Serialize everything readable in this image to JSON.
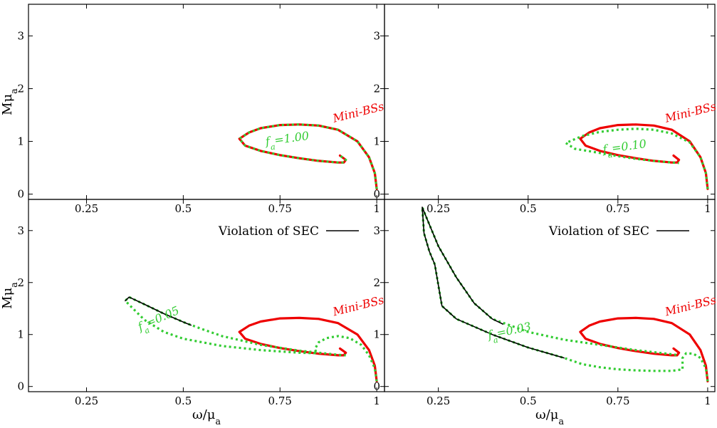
{
  "colors": {
    "mini": "#ee0000",
    "axion": "#33cc33",
    "sec": "#000000"
  },
  "chart_data": [
    {
      "type": "line",
      "xlim": [
        0.1,
        1.02
      ],
      "ylim": [
        -0.1,
        3.6
      ],
      "xticks": [
        "0.25",
        "0.5",
        "0.75",
        "1"
      ],
      "yticks": [
        "0",
        "1",
        "2",
        "3"
      ],
      "xlabel": "",
      "ylabel": "Mμa",
      "mini_label": "Mini-BSs",
      "curve_label": "fa=1.00",
      "legend": "",
      "series": [
        {
          "name": "Mini-BSs",
          "style": "solid-red",
          "x": [
            1.0,
            0.995,
            0.98,
            0.95,
            0.9,
            0.85,
            0.8,
            0.75,
            0.7,
            0.67,
            0.645,
            0.66,
            0.7,
            0.75,
            0.8,
            0.85,
            0.9,
            0.915,
            0.92,
            0.905
          ],
          "y": [
            0.1,
            0.4,
            0.7,
            1.0,
            1.22,
            1.3,
            1.32,
            1.31,
            1.25,
            1.17,
            1.05,
            0.92,
            0.82,
            0.74,
            0.68,
            0.63,
            0.6,
            0.6,
            0.65,
            0.73
          ]
        },
        {
          "name": "fa=1.00",
          "style": "dotted-green",
          "x": [
            1.0,
            0.995,
            0.98,
            0.95,
            0.9,
            0.85,
            0.8,
            0.75,
            0.7,
            0.67,
            0.645,
            0.66,
            0.7,
            0.75,
            0.8,
            0.85,
            0.9,
            0.915,
            0.92,
            0.905
          ],
          "y": [
            0.1,
            0.4,
            0.7,
            1.0,
            1.22,
            1.3,
            1.32,
            1.31,
            1.25,
            1.17,
            1.05,
            0.92,
            0.82,
            0.74,
            0.68,
            0.63,
            0.6,
            0.6,
            0.65,
            0.73
          ]
        }
      ]
    },
    {
      "type": "line",
      "xlim": [
        0.1,
        1.02
      ],
      "ylim": [
        -0.1,
        3.6
      ],
      "xticks": [
        "0.25",
        "0.5",
        "0.75",
        "1"
      ],
      "yticks": [
        "0",
        "1",
        "2",
        "3"
      ],
      "xlabel": "",
      "ylabel": "",
      "mini_label": "Mini-BSs",
      "curve_label": "fa=0.10",
      "legend": "",
      "series": [
        {
          "name": "Mini-BSs",
          "style": "solid-red",
          "x": [
            1.0,
            0.995,
            0.98,
            0.95,
            0.9,
            0.85,
            0.8,
            0.75,
            0.7,
            0.67,
            0.645,
            0.66,
            0.7,
            0.75,
            0.8,
            0.85,
            0.9,
            0.915,
            0.92,
            0.905
          ],
          "y": [
            0.1,
            0.4,
            0.7,
            1.0,
            1.22,
            1.3,
            1.32,
            1.31,
            1.25,
            1.17,
            1.05,
            0.92,
            0.82,
            0.74,
            0.68,
            0.63,
            0.6,
            0.6,
            0.65,
            0.73
          ]
        },
        {
          "name": "fa=0.10",
          "style": "dotted-green",
          "x": [
            1.0,
            0.995,
            0.98,
            0.95,
            0.9,
            0.85,
            0.8,
            0.75,
            0.7,
            0.65,
            0.605,
            0.63,
            0.7,
            0.75,
            0.8,
            0.85,
            0.9,
            0.92
          ],
          "y": [
            0.1,
            0.4,
            0.7,
            0.98,
            1.15,
            1.22,
            1.24,
            1.22,
            1.18,
            1.1,
            0.97,
            0.86,
            0.78,
            0.72,
            0.67,
            0.63,
            0.6,
            0.59
          ]
        }
      ]
    },
    {
      "type": "line",
      "xlim": [
        0.1,
        1.02
      ],
      "ylim": [
        -0.1,
        3.6
      ],
      "xticks": [
        "0.25",
        "0.5",
        "0.75",
        "1"
      ],
      "yticks": [
        "0",
        "1",
        "2",
        "3"
      ],
      "xlabel": "ω/μa",
      "ylabel": "Mμa",
      "mini_label": "Mini-BSs",
      "curve_label": "fa=0.05",
      "legend": "Violation of SEC",
      "series": [
        {
          "name": "Mini-BSs",
          "style": "solid-red",
          "x": [
            1.0,
            0.995,
            0.98,
            0.95,
            0.9,
            0.85,
            0.8,
            0.75,
            0.7,
            0.67,
            0.645,
            0.66,
            0.7,
            0.75,
            0.8,
            0.85,
            0.9,
            0.915,
            0.92,
            0.905
          ],
          "y": [
            0.1,
            0.4,
            0.7,
            1.0,
            1.22,
            1.3,
            1.32,
            1.31,
            1.25,
            1.17,
            1.05,
            0.92,
            0.82,
            0.74,
            0.68,
            0.63,
            0.6,
            0.6,
            0.65,
            0.73
          ]
        },
        {
          "name": "fa=0.05",
          "style": "dotted-green",
          "x": [
            1.0,
            0.995,
            0.98,
            0.96,
            0.93,
            0.9,
            0.87,
            0.85,
            0.84,
            0.845,
            0.8,
            0.7,
            0.6,
            0.5,
            0.45,
            0.4,
            0.37,
            0.35,
            0.36,
            0.4,
            0.45,
            0.5,
            0.55,
            0.6,
            0.7,
            0.8,
            0.9,
            0.92
          ],
          "y": [
            0.1,
            0.35,
            0.6,
            0.8,
            0.93,
            0.97,
            0.93,
            0.85,
            0.72,
            0.64,
            0.65,
            0.7,
            0.78,
            0.92,
            1.05,
            1.28,
            1.5,
            1.65,
            1.72,
            1.58,
            1.4,
            1.24,
            1.1,
            0.97,
            0.8,
            0.69,
            0.61,
            0.6
          ]
        }
      ],
      "sec_segment": {
        "x": [
          0.35,
          0.36,
          0.4,
          0.45,
          0.5,
          0.52
        ],
        "y": [
          1.65,
          1.72,
          1.58,
          1.4,
          1.24,
          1.18
        ]
      }
    },
    {
      "type": "line",
      "xlim": [
        0.1,
        1.02
      ],
      "ylim": [
        -0.1,
        3.6
      ],
      "xticks": [
        "0.25",
        "0.5",
        "0.75",
        "1"
      ],
      "yticks": [
        "0",
        "1",
        "2",
        "3"
      ],
      "xlabel": "ω/μa",
      "ylabel": "",
      "mini_label": "Mini-BSs",
      "curve_label": "fa=0.03",
      "legend": "Violation of SEC",
      "series": [
        {
          "name": "Mini-BSs",
          "style": "solid-red",
          "x": [
            1.0,
            0.995,
            0.98,
            0.95,
            0.9,
            0.85,
            0.8,
            0.75,
            0.7,
            0.67,
            0.645,
            0.66,
            0.7,
            0.75,
            0.8,
            0.85,
            0.9,
            0.915,
            0.92,
            0.905
          ],
          "y": [
            0.1,
            0.4,
            0.7,
            1.0,
            1.22,
            1.3,
            1.32,
            1.31,
            1.25,
            1.17,
            1.05,
            0.92,
            0.82,
            0.74,
            0.68,
            0.63,
            0.6,
            0.6,
            0.65,
            0.73
          ]
        },
        {
          "name": "fa=0.03",
          "style": "dotted-green",
          "x": [
            1.0,
            0.995,
            0.98,
            0.96,
            0.94,
            0.93,
            0.93,
            0.9,
            0.85,
            0.8,
            0.75,
            0.7,
            0.65,
            0.6,
            0.5,
            0.4,
            0.3,
            0.26,
            0.24,
            0.225,
            0.21,
            0.205,
            0.22,
            0.25,
            0.3,
            0.35,
            0.4,
            0.5,
            0.6,
            0.7,
            0.8,
            0.9,
            0.92
          ],
          "y": [
            0.1,
            0.35,
            0.55,
            0.63,
            0.64,
            0.55,
            0.33,
            0.3,
            0.3,
            0.31,
            0.33,
            0.37,
            0.43,
            0.55,
            0.75,
            1.0,
            1.3,
            1.55,
            2.35,
            2.6,
            2.95,
            3.45,
            3.2,
            2.7,
            2.1,
            1.6,
            1.3,
            1.05,
            0.9,
            0.8,
            0.7,
            0.62,
            0.6
          ]
        },
        {
          "name": "Violation of SEC",
          "style": "solid-black",
          "x": [
            0.6,
            0.5,
            0.4,
            0.3,
            0.26,
            0.24,
            0.225,
            0.21,
            0.205,
            0.22,
            0.25,
            0.3,
            0.35,
            0.4,
            0.43
          ],
          "y": [
            0.55,
            0.75,
            1.0,
            1.3,
            1.55,
            2.35,
            2.6,
            2.95,
            3.45,
            3.2,
            2.7,
            2.1,
            1.6,
            1.3,
            1.2
          ]
        }
      ]
    }
  ]
}
